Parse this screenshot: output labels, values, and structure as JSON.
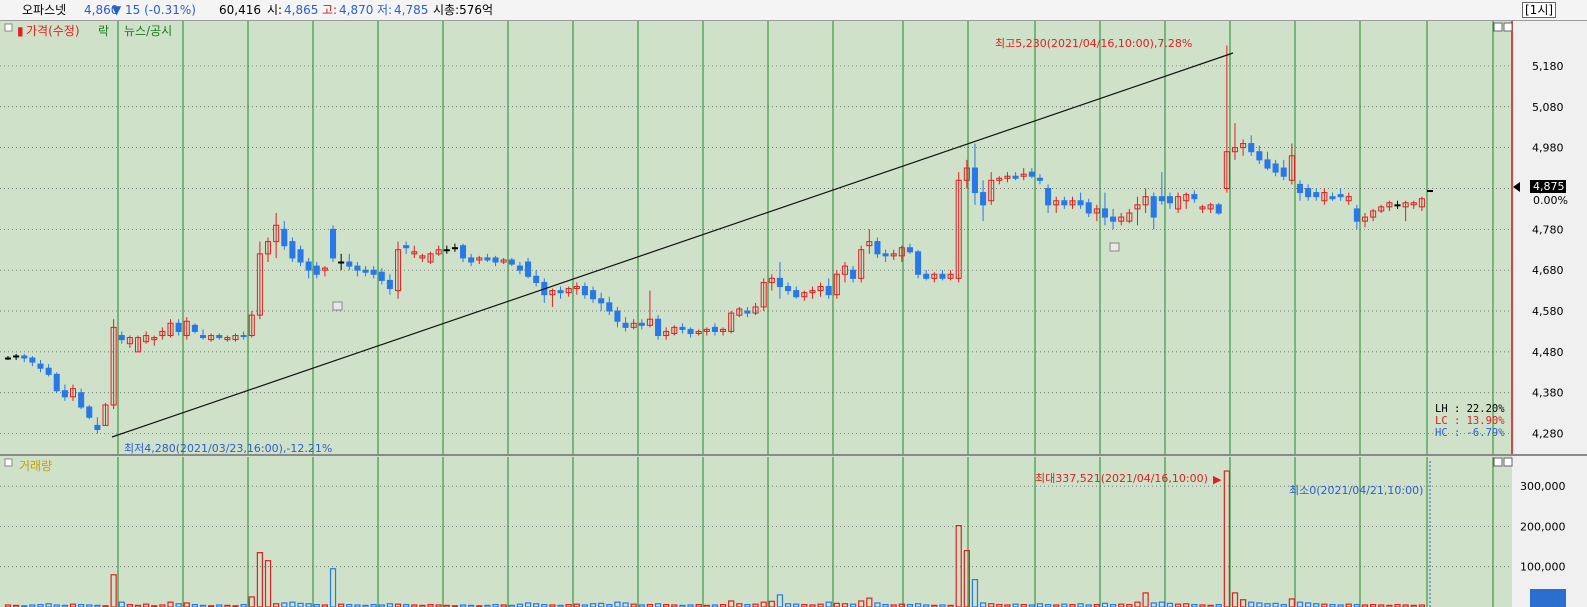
{
  "header": {
    "name": "오파스넷",
    "price": "4,860",
    "change": "▼ 15 (-0.31%)",
    "volume": "60,416",
    "open_label": "시:",
    "open": "4,865",
    "high_label": "고:",
    "high": "4,870",
    "low_label": "저:",
    "low": "4,785",
    "market_cap": "시총:576억",
    "period": "[1시]"
  },
  "legend": {
    "price_marker": "▮",
    "price_label": "가격(수정)",
    "rak_label": "락",
    "news_label": "뉴스/공시",
    "volume_label": "거래량"
  },
  "annotations": {
    "max_price": "최고5,230(2021/04/16,10:00),7.28%",
    "min_price": "최저4,280(2021/03/23,16:00),-12.21%",
    "max_volume": "최대337,521(2021/04/16,10:00)",
    "min_volume": "최소0(2021/04/21,10:00)",
    "current_price": "4,875",
    "current_change": "0.00%"
  },
  "stats": {
    "lh": "LH : 22.20%",
    "lc": "LC : 13.90%",
    "hc": "HC : -6.79%"
  },
  "colors": {
    "up": "#e02020",
    "down": "#2878e8",
    "grid_vertical": "#1e8a2a",
    "panel_bg": "#cfe1c9"
  },
  "chart_data": [
    {
      "type": "candlestick",
      "title": "가격(수정)",
      "y_ticks": [
        4280,
        4380,
        4480,
        4580,
        4680,
        4780,
        4880,
        4980,
        5080,
        5180
      ],
      "ylim": [
        4230,
        5290
      ],
      "grid": "dotted horizontal, solid vertical",
      "ohlc": [
        [
          4465,
          4470,
          4460,
          4465
        ],
        [
          4470,
          4475,
          4460,
          4470
        ],
        [
          4470,
          4475,
          4455,
          4465
        ],
        [
          4465,
          4470,
          4445,
          4455
        ],
        [
          4450,
          4460,
          4430,
          4440
        ],
        [
          4440,
          4450,
          4420,
          4425
        ],
        [
          4425,
          4430,
          4380,
          4385
        ],
        [
          4385,
          4400,
          4360,
          4370
        ],
        [
          4370,
          4400,
          4360,
          4390
        ],
        [
          4380,
          4390,
          4340,
          4345
        ],
        [
          4345,
          4350,
          4315,
          4320
        ],
        [
          4300,
          4320,
          4280,
          4290
        ],
        [
          4300,
          4355,
          4300,
          4350
        ],
        [
          4350,
          4560,
          4340,
          4540
        ],
        [
          4520,
          4530,
          4500,
          4510
        ],
        [
          4500,
          4520,
          4490,
          4515
        ],
        [
          4480,
          4520,
          4480,
          4515
        ],
        [
          4505,
          4530,
          4500,
          4520
        ],
        [
          4510,
          4520,
          4495,
          4515
        ],
        [
          4520,
          4540,
          4510,
          4530
        ],
        [
          4520,
          4560,
          4515,
          4550
        ],
        [
          4550,
          4560,
          4520,
          4530
        ],
        [
          4520,
          4565,
          4510,
          4555
        ],
        [
          4545,
          4550,
          4525,
          4530
        ],
        [
          4520,
          4535,
          4510,
          4515
        ],
        [
          4510,
          4525,
          4505,
          4520
        ],
        [
          4520,
          4525,
          4510,
          4515
        ],
        [
          4510,
          4520,
          4505,
          4515
        ],
        [
          4510,
          4525,
          4505,
          4520
        ],
        [
          4520,
          4530,
          4510,
          4518
        ],
        [
          4520,
          4580,
          4515,
          4570
        ],
        [
          4570,
          4750,
          4560,
          4720
        ],
        [
          4720,
          4760,
          4700,
          4750
        ],
        [
          4750,
          4820,
          4710,
          4790
        ],
        [
          4780,
          4800,
          4730,
          4740
        ],
        [
          4750,
          4760,
          4700,
          4710
        ],
        [
          4730,
          4740,
          4690,
          4700
        ],
        [
          4700,
          4710,
          4660,
          4680
        ],
        [
          4690,
          4700,
          4660,
          4670
        ],
        [
          4680,
          4690,
          4665,
          4685
        ],
        [
          4780,
          4790,
          4700,
          4710
        ],
        [
          4700,
          4720,
          4680,
          4700
        ],
        [
          4700,
          4720,
          4680,
          4690
        ],
        [
          4690,
          4700,
          4665,
          4680
        ],
        [
          4680,
          4690,
          4665,
          4675
        ],
        [
          4680,
          4690,
          4660,
          4670
        ],
        [
          4675,
          4685,
          4645,
          4655
        ],
        [
          4655,
          4670,
          4620,
          4635
        ],
        [
          4630,
          4750,
          4610,
          4730
        ],
        [
          4740,
          4750,
          4720,
          4735
        ],
        [
          4720,
          4740,
          4710,
          4725
        ],
        [
          4710,
          4720,
          4700,
          4715
        ],
        [
          4700,
          4725,
          4695,
          4720
        ],
        [
          4720,
          4740,
          4715,
          4730
        ],
        [
          4730,
          4740,
          4720,
          4730
        ],
        [
          4735,
          4745,
          4725,
          4735
        ],
        [
          4740,
          4745,
          4700,
          4710
        ],
        [
          4710,
          4720,
          4690,
          4700
        ],
        [
          4705,
          4715,
          4695,
          4710
        ],
        [
          4710,
          4720,
          4700,
          4705
        ],
        [
          4710,
          4715,
          4690,
          4700
        ],
        [
          4700,
          4710,
          4695,
          4705
        ],
        [
          4705,
          4710,
          4690,
          4695
        ],
        [
          4690,
          4700,
          4670,
          4680
        ],
        [
          4700,
          4710,
          4660,
          4665
        ],
        [
          4665,
          4680,
          4640,
          4650
        ],
        [
          4650,
          4660,
          4600,
          4620
        ],
        [
          4620,
          4635,
          4590,
          4630
        ],
        [
          4630,
          4640,
          4610,
          4625
        ],
        [
          4625,
          4640,
          4615,
          4635
        ],
        [
          4635,
          4650,
          4620,
          4640
        ],
        [
          4640,
          4650,
          4610,
          4620
        ],
        [
          4630,
          4640,
          4600,
          4610
        ],
        [
          4610,
          4625,
          4580,
          4600
        ],
        [
          4600,
          4615,
          4570,
          4580
        ],
        [
          4580,
          4590,
          4540,
          4555
        ],
        [
          4550,
          4565,
          4530,
          4540
        ],
        [
          4540,
          4560,
          4535,
          4550
        ],
        [
          4550,
          4560,
          4535,
          4545
        ],
        [
          4545,
          4630,
          4540,
          4560
        ],
        [
          4560,
          4570,
          4510,
          4520
        ],
        [
          4520,
          4540,
          4510,
          4530
        ],
        [
          4525,
          4545,
          4520,
          4540
        ],
        [
          4540,
          4550,
          4525,
          4535
        ],
        [
          4535,
          4540,
          4515,
          4525
        ],
        [
          4525,
          4535,
          4520,
          4530
        ],
        [
          4530,
          4540,
          4520,
          4535
        ],
        [
          4540,
          4550,
          4520,
          4530
        ],
        [
          4530,
          4540,
          4520,
          4535
        ],
        [
          4530,
          4580,
          4525,
          4575
        ],
        [
          4570,
          4590,
          4565,
          4585
        ],
        [
          4580,
          4590,
          4565,
          4575
        ],
        [
          4575,
          4600,
          4570,
          4590
        ],
        [
          4590,
          4660,
          4580,
          4650
        ],
        [
          4650,
          4670,
          4630,
          4660
        ],
        [
          4660,
          4700,
          4610,
          4640
        ],
        [
          4640,
          4650,
          4620,
          4630
        ],
        [
          4630,
          4640,
          4610,
          4615
        ],
        [
          4615,
          4630,
          4605,
          4625
        ],
        [
          4625,
          4640,
          4610,
          4630
        ],
        [
          4630,
          4650,
          4615,
          4640
        ],
        [
          4640,
          4660,
          4610,
          4620
        ],
        [
          4620,
          4680,
          4610,
          4670
        ],
        [
          4670,
          4700,
          4650,
          4690
        ],
        [
          4680,
          4690,
          4650,
          4660
        ],
        [
          4660,
          4740,
          4650,
          4730
        ],
        [
          4740,
          4780,
          4720,
          4750
        ],
        [
          4750,
          4760,
          4710,
          4720
        ],
        [
          4720,
          4730,
          4700,
          4715
        ],
        [
          4715,
          4730,
          4705,
          4720
        ],
        [
          4715,
          4740,
          4700,
          4735
        ],
        [
          4735,
          4745,
          4720,
          4725
        ],
        [
          4725,
          4730,
          4660,
          4670
        ],
        [
          4670,
          4680,
          4655,
          4660
        ],
        [
          4660,
          4675,
          4650,
          4670
        ],
        [
          4670,
          4680,
          4655,
          4660
        ],
        [
          4660,
          4680,
          4655,
          4670
        ],
        [
          4660,
          4920,
          4650,
          4900
        ],
        [
          4900,
          4950,
          4880,
          4930
        ],
        [
          4930,
          4990,
          4840,
          4870
        ],
        [
          4870,
          4900,
          4800,
          4840
        ],
        [
          4850,
          4920,
          4840,
          4900
        ],
        [
          4900,
          4910,
          4890,
          4905
        ],
        [
          4905,
          4920,
          4895,
          4910
        ],
        [
          4910,
          4920,
          4900,
          4905
        ],
        [
          4910,
          4930,
          4900,
          4915
        ],
        [
          4920,
          4930,
          4905,
          4910
        ],
        [
          4905,
          4915,
          4890,
          4900
        ],
        [
          4880,
          4890,
          4820,
          4840
        ],
        [
          4840,
          4860,
          4820,
          4850
        ],
        [
          4850,
          4860,
          4830,
          4840
        ],
        [
          4840,
          4860,
          4830,
          4850
        ],
        [
          4850,
          4870,
          4830,
          4840
        ],
        [
          4845,
          4855,
          4810,
          4820
        ],
        [
          4820,
          4840,
          4800,
          4830
        ],
        [
          4830,
          4870,
          4790,
          4810
        ],
        [
          4810,
          4830,
          4780,
          4800
        ],
        [
          4800,
          4820,
          4790,
          4810
        ],
        [
          4800,
          4830,
          4795,
          4820
        ],
        [
          4830,
          4860,
          4790,
          4840
        ],
        [
          4840,
          4880,
          4820,
          4860
        ],
        [
          4860,
          4870,
          4780,
          4810
        ],
        [
          4860,
          4920,
          4840,
          4850
        ],
        [
          4860,
          4870,
          4830,
          4845
        ],
        [
          4830,
          4870,
          4820,
          4860
        ],
        [
          4850,
          4870,
          4830,
          4865
        ],
        [
          4865,
          4875,
          4845,
          4855
        ],
        [
          4830,
          4840,
          4820,
          4835
        ],
        [
          4830,
          4845,
          4820,
          4840
        ],
        [
          4840,
          4845,
          4815,
          4820
        ],
        [
          4880,
          5230,
          4870,
          4970
        ],
        [
          4970,
          5040,
          4950,
          4980
        ],
        [
          4980,
          5000,
          4960,
          4990
        ],
        [
          4990,
          5010,
          4960,
          4970
        ],
        [
          4970,
          4985,
          4940,
          4950
        ],
        [
          4950,
          4970,
          4925,
          4930
        ],
        [
          4940,
          4950,
          4910,
          4920
        ],
        [
          4930,
          4950,
          4900,
          4910
        ],
        [
          4900,
          4990,
          4890,
          4960
        ],
        [
          4890,
          4900,
          4850,
          4870
        ],
        [
          4880,
          4890,
          4850,
          4860
        ],
        [
          4870,
          4880,
          4850,
          4860
        ],
        [
          4850,
          4880,
          4840,
          4870
        ],
        [
          4860,
          4870,
          4850,
          4855
        ],
        [
          4865,
          4880,
          4850,
          4860
        ],
        [
          4850,
          4870,
          4840,
          4860
        ],
        [
          4830,
          4840,
          4780,
          4800
        ],
        [
          4800,
          4820,
          4785,
          4810
        ],
        [
          4810,
          4830,
          4800,
          4825
        ],
        [
          4825,
          4840,
          4820,
          4835
        ],
        [
          4835,
          4850,
          4825,
          4845
        ],
        [
          4840,
          4850,
          4830,
          4840
        ],
        [
          4835,
          4850,
          4800,
          4845
        ],
        [
          4840,
          4850,
          4830,
          4845
        ],
        [
          4835,
          4860,
          4825,
          4855
        ],
        [
          4875,
          4875,
          4875,
          4875
        ]
      ]
    },
    {
      "type": "bar",
      "title": "거래량",
      "y_ticks": [
        100000,
        200000,
        300000
      ],
      "ylim": [
        0,
        350000
      ],
      "values": [
        5000,
        4000,
        3000,
        5000,
        6000,
        8000,
        5000,
        4000,
        7000,
        6000,
        5000,
        4000,
        3000,
        80000,
        12000,
        6000,
        4000,
        7000,
        3000,
        5000,
        12000,
        8000,
        10000,
        6000,
        4000,
        3000,
        5000,
        4000,
        3000,
        6000,
        25000,
        135000,
        115000,
        8000,
        10000,
        12000,
        9000,
        8000,
        6000,
        5000,
        95000,
        7000,
        6000,
        5000,
        4000,
        6000,
        5000,
        8000,
        7000,
        6000,
        5000,
        4000,
        6000,
        5000,
        4000,
        3000,
        5000,
        4000,
        3000,
        4000,
        6000,
        5000,
        4000,
        7000,
        10000,
        8000,
        6000,
        5000,
        4000,
        6000,
        7000,
        5000,
        8000,
        9000,
        6000,
        12000,
        10000,
        7000,
        5000,
        6000,
        8000,
        6000,
        5000,
        4000,
        5000,
        6000,
        4000,
        5000,
        6000,
        15000,
        8000,
        6000,
        7000,
        12000,
        14000,
        30000,
        8000,
        7000,
        6000,
        5000,
        7000,
        12000,
        9000,
        8000,
        7000,
        15000,
        22000,
        10000,
        6000,
        5000,
        7000,
        6000,
        8000,
        5000,
        4000,
        5000,
        4000,
        202000,
        140000,
        68000,
        10000,
        8000,
        6000,
        5000,
        7000,
        6000,
        5000,
        8000,
        6000,
        5000,
        7000,
        6000,
        8000,
        5000,
        6000,
        9000,
        6000,
        7000,
        6000,
        12000,
        35000,
        10000,
        12000,
        9000,
        7000,
        8000,
        6000,
        5000,
        4000,
        6000,
        337521,
        35000,
        18000,
        12000,
        10000,
        8000,
        9000,
        6000,
        20000,
        12000,
        10000,
        8000,
        7000,
        6000,
        5000,
        7000,
        6000,
        5000,
        6000,
        5000,
        4000,
        6000,
        5000,
        4000,
        5000,
        0
      ]
    }
  ]
}
